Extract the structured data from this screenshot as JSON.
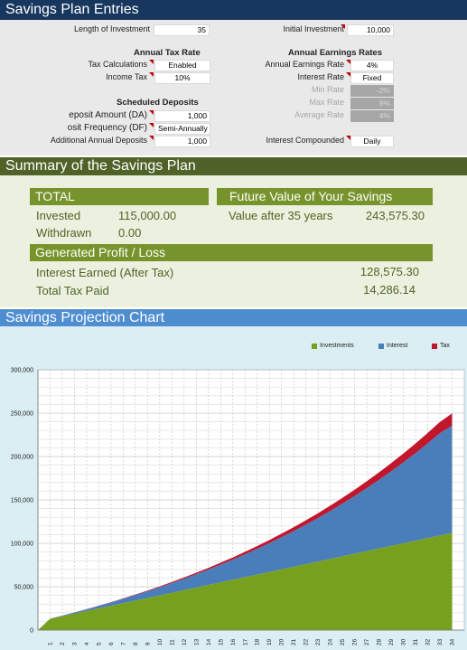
{
  "entries": {
    "title": "Savings Plan Entries",
    "length_label": "Length of Investment",
    "length_value": "35",
    "initial_label": "Initial Investment",
    "initial_value": "10,000",
    "tax_header": "Annual Tax Rate",
    "tax_calc_label": "Tax Calculations",
    "tax_calc_value": "Enabled",
    "income_tax_label": "Income Tax",
    "income_tax_value": "10%",
    "earn_header": "Annual Earnings Rates",
    "earn_rate_label": "Annual Earnings Rate",
    "earn_rate_value": "4%",
    "interest_rate_label": "Interest Rate",
    "interest_rate_value": "Fixed",
    "min_rate_label": "Min Rate",
    "min_rate_value": "-2%",
    "max_rate_label": "Max Rate",
    "max_rate_value": "9%",
    "avg_rate_label": "Average Rate",
    "avg_rate_value": "4%",
    "sched_header": "Scheduled Deposits",
    "deposit_amount_label": "eposit Amount (DA)",
    "deposit_amount_value": "1,000",
    "deposit_freq_label": "osit Frequency (DF)",
    "deposit_freq_value": "Semi-Annually",
    "additional_label": "Additional Annual Deposits",
    "additional_value": "1,000",
    "compounded_label": "Interest Compounded",
    "compounded_value": "Daily"
  },
  "summary": {
    "title": "Summary of the Savings Plan",
    "total_header": "TOTAL",
    "invested_label": "Invested",
    "invested_value": "115,000.00",
    "withdrawn_label": "Withdrawn",
    "withdrawn_value": "0.00",
    "future_header": "Future Value of Your Savings",
    "value_after_label": "Value after 35 years",
    "value_after_value": "243,575.30",
    "profit_header": "Generated Profit / Loss",
    "interest_earned_label": "Interest Earned (After Tax)",
    "interest_earned_value": "128,575.30",
    "tax_paid_label": "Total Tax Paid",
    "tax_paid_value": "14,286.14"
  },
  "chart_title": "Savings Projection Chart",
  "chart_data": {
    "type": "area",
    "stacked": true,
    "ylim": [
      0,
      300000
    ],
    "yticks": [
      "0",
      "50,000",
      "100,000",
      "150,000",
      "200,000",
      "250,000",
      "300,000"
    ],
    "x": [
      1,
      2,
      3,
      4,
      5,
      6,
      7,
      8,
      9,
      10,
      11,
      12,
      13,
      14,
      15,
      16,
      17,
      18,
      19,
      20,
      21,
      22,
      23,
      24,
      25,
      26,
      27,
      28,
      29,
      30,
      31,
      32,
      33,
      34
    ],
    "series": [
      {
        "name": "Investments",
        "color": "#77a01f",
        "values": [
          13000,
          16000,
          19000,
          22000,
          25000,
          28000,
          31000,
          34000,
          37000,
          40000,
          43000,
          46000,
          49000,
          52000,
          55000,
          58000,
          61000,
          64000,
          67000,
          70000,
          73000,
          76000,
          79000,
          82000,
          85000,
          88000,
          91000,
          94000,
          97000,
          100000,
          103000,
          106000,
          109000,
          112000
        ]
      },
      {
        "name": "Interest",
        "color": "#4a7ebb",
        "values": [
          300,
          700,
          1300,
          2000,
          2800,
          3800,
          5000,
          6300,
          7800,
          9400,
          11200,
          13200,
          15400,
          17800,
          20400,
          23200,
          26300,
          29600,
          33100,
          37000,
          41100,
          45500,
          50200,
          55300,
          60700,
          66400,
          72500,
          79000,
          85900,
          93200,
          100900,
          109100,
          117800,
          123500
        ]
      },
      {
        "name": "Tax",
        "color": "#c0172d",
        "values": [
          30,
          80,
          140,
          220,
          310,
          420,
          560,
          700,
          870,
          1050,
          1250,
          1470,
          1710,
          1980,
          2270,
          2580,
          2920,
          3290,
          3680,
          4110,
          4570,
          5060,
          5580,
          6140,
          6740,
          7380,
          8060,
          8780,
          9550,
          10360,
          11210,
          12120,
          13090,
          14290
        ]
      }
    ]
  }
}
